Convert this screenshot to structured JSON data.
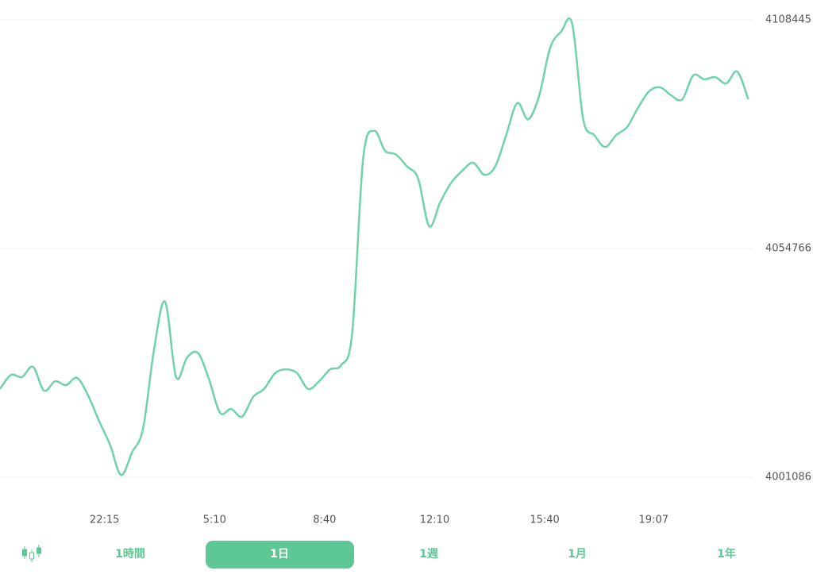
{
  "chart_data": {
    "type": "line",
    "series": [
      {
        "color": "#6fd3a9",
        "values": [
          4021800,
          4025100,
          4024600,
          4027000,
          4021400,
          4023600,
          4022700,
          4024400,
          4020300,
          4014300,
          4008700,
          4001600,
          4006900,
          4012500,
          4031100,
          4042300,
          4024600,
          4029200,
          4030200,
          4024000,
          4016200,
          4017100,
          4015300,
          4019900,
          4021800,
          4025500,
          4026400,
          4025500,
          4021800,
          4023600,
          4026400,
          4027400,
          4034800,
          4075800,
          4082400,
          4077700,
          4076800,
          4074000,
          4071200,
          4060000,
          4065600,
          4070200,
          4073000,
          4074900,
          4072100,
          4074000,
          4081400,
          4088900,
          4085100,
          4090700,
          4101900,
          4105700,
          4107500,
          4085100,
          4081400,
          4078600,
          4081400,
          4083300,
          4087900,
          4091700,
          4092600,
          4090700,
          4089800,
          4095400,
          4094500,
          4095000,
          4093500,
          4096300,
          4089800
        ]
      }
    ],
    "xlim": [
      0,
      68.4
    ],
    "xticks": [
      {
        "value": 9.5,
        "label": "22:15"
      },
      {
        "value": 19.5,
        "label": "5:10"
      },
      {
        "value": 29.5,
        "label": "8:40"
      },
      {
        "value": 39.5,
        "label": "12:10"
      },
      {
        "value": 49.5,
        "label": "15:40"
      },
      {
        "value": 59.4,
        "label": "19:07"
      }
    ],
    "ylim": [
      4001086,
      4108445
    ],
    "yticks": [
      4001086,
      4054766,
      4108445
    ],
    "grid": true
  },
  "controls": {
    "periods": [
      "1時間",
      "1日",
      "1週",
      "1月",
      "1年"
    ],
    "selected": 1
  }
}
